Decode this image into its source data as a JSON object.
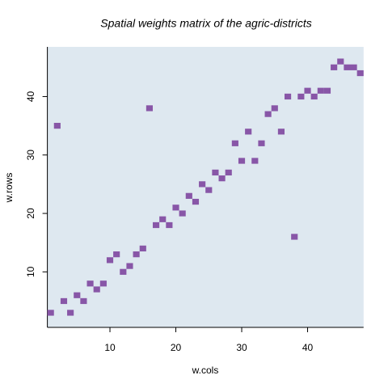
{
  "chart_data": {
    "type": "scatter",
    "title": "Spatial weights matrix of the agric-districts",
    "x_label": "w.cols",
    "y_label": "w.rows",
    "x": [
      1,
      2,
      3,
      4,
      5,
      6,
      7,
      8,
      9,
      10,
      11,
      12,
      13,
      14,
      15,
      16,
      17,
      18,
      19,
      20,
      21,
      22,
      23,
      24,
      25,
      26,
      27,
      28,
      29,
      30,
      31,
      32,
      33,
      34,
      35,
      36,
      37,
      38,
      39,
      40,
      41,
      42,
      43,
      44,
      45,
      46,
      47,
      48
    ],
    "values": [
      3,
      35,
      5,
      3,
      6,
      5,
      8,
      7,
      8,
      12,
      13,
      10,
      11,
      13,
      14,
      38,
      18,
      19,
      18,
      21,
      20,
      23,
      22,
      25,
      24,
      27,
      26,
      27,
      32,
      29,
      34,
      29,
      32,
      37,
      38,
      34,
      40,
      16,
      40,
      41,
      40,
      41,
      41,
      45,
      46,
      45,
      45,
      44
    ],
    "color": "#8856a7",
    "background": "#dee8f0",
    "xlim": [
      0.5,
      48.5
    ],
    "ylim": [
      0.5,
      48.5
    ],
    "xticks": [
      10,
      20,
      30,
      40
    ],
    "yticks": [
      10,
      20,
      30,
      40
    ]
  }
}
